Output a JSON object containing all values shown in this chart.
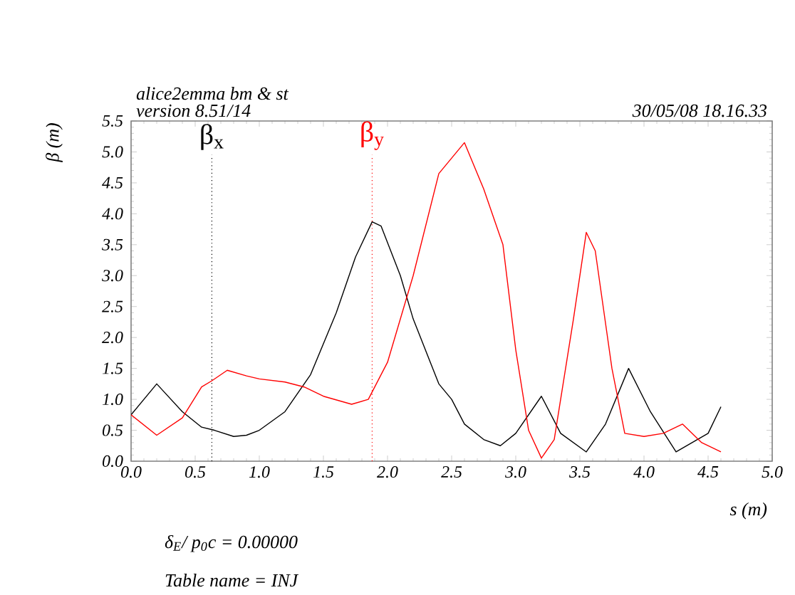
{
  "chart_data": {
    "type": "line",
    "title": "alice2emma bm & st",
    "subtitle": "version 8.51/14",
    "xlabel": "s (m)",
    "ylabel": "β (m)",
    "annotations": [
      "30/05/08  18.16.33",
      "δ$_{E}$/ p$_{0}$c  =  0.00000",
      "Table name = INJ"
    ],
    "xlim": [
      0,
      5
    ],
    "ylim": [
      0,
      5.5
    ],
    "xticks": [
      {
        "value": 0,
        "label": "0.0"
      },
      {
        "value": 0.5,
        "label": "0.5"
      },
      {
        "value": 1,
        "label": "1.0"
      },
      {
        "value": 1.5,
        "label": "1.5"
      },
      {
        "value": 2,
        "label": "2.0"
      },
      {
        "value": 2.5,
        "label": "2.5"
      },
      {
        "value": 3,
        "label": "3.0"
      },
      {
        "value": 3.5,
        "label": "3.5"
      },
      {
        "value": 4,
        "label": "4.0"
      },
      {
        "value": 4.5,
        "label": "4.5"
      },
      {
        "value": 5,
        "label": "5.0"
      }
    ],
    "yticks": [
      {
        "value": 0,
        "label": "0.0"
      },
      {
        "value": 0.5,
        "label": "0.5"
      },
      {
        "value": 1,
        "label": "1.0"
      },
      {
        "value": 1.5,
        "label": "1.5"
      },
      {
        "value": 2,
        "label": "2.0"
      },
      {
        "value": 2.5,
        "label": "2.5"
      },
      {
        "value": 3,
        "label": "3.0"
      },
      {
        "value": 3.5,
        "label": "3.5"
      },
      {
        "value": 4,
        "label": "4.0"
      },
      {
        "value": 4.5,
        "label": "4.5"
      },
      {
        "value": 5,
        "label": "5.0"
      },
      {
        "value": 5.5,
        "label": "5.5"
      }
    ],
    "grid": false,
    "ref_lines": [
      {
        "axis": "x",
        "value": 0.63,
        "label": "β$_{x}$",
        "color": "#000000",
        "line_style": "dotted"
      },
      {
        "axis": "x",
        "value": 1.88,
        "label": "β$_{y}$",
        "color": "#ff0000",
        "line_style": "dotted"
      }
    ],
    "series": [
      {
        "color": "#000000",
        "x": [
          0,
          0.2,
          0.4,
          0.55,
          0.65,
          0.8,
          0.9,
          1.0,
          1.2,
          1.4,
          1.6,
          1.75,
          1.88,
          1.95,
          2.1,
          2.2,
          2.4,
          2.5,
          2.6,
          2.75,
          2.88,
          3.0,
          3.2,
          3.35,
          3.55,
          3.7,
          3.88,
          4.05,
          4.25,
          4.5,
          4.6
        ],
        "values": [
          0.75,
          1.25,
          0.8,
          0.55,
          0.5,
          0.4,
          0.42,
          0.5,
          0.8,
          1.4,
          2.4,
          3.3,
          3.87,
          3.8,
          3.0,
          2.3,
          1.25,
          1.0,
          0.6,
          0.35,
          0.25,
          0.45,
          1.05,
          0.45,
          0.15,
          0.6,
          1.5,
          0.8,
          0.15,
          0.45,
          0.88
        ]
      },
      {
        "color": "#ff0000",
        "x": [
          0,
          0.2,
          0.4,
          0.55,
          0.63,
          0.75,
          0.9,
          1.0,
          1.2,
          1.35,
          1.5,
          1.72,
          1.85,
          2.0,
          2.2,
          2.4,
          2.6,
          2.75,
          2.85,
          2.9,
          3.0,
          3.1,
          3.2,
          3.3,
          3.45,
          3.55,
          3.62,
          3.75,
          3.85,
          4.0,
          4.15,
          4.3,
          4.45,
          4.6
        ],
        "values": [
          0.75,
          0.42,
          0.7,
          1.2,
          1.3,
          1.47,
          1.38,
          1.33,
          1.28,
          1.2,
          1.05,
          0.92,
          1.0,
          1.6,
          3.0,
          4.65,
          5.15,
          4.4,
          3.8,
          3.5,
          1.8,
          0.5,
          0.05,
          0.35,
          2.3,
          3.7,
          3.4,
          1.5,
          0.45,
          0.4,
          0.45,
          0.6,
          0.3,
          0.15
        ]
      }
    ]
  }
}
